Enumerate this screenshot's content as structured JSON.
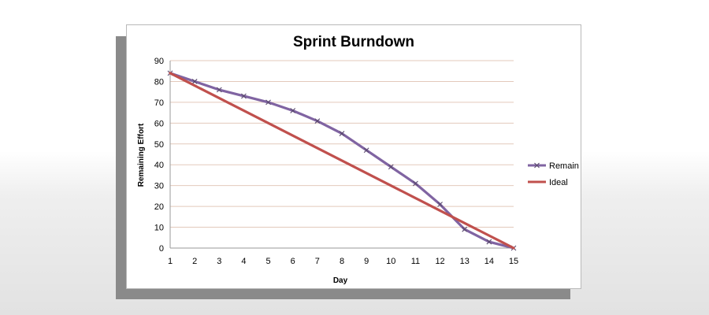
{
  "chart_data": {
    "type": "line",
    "title": "Sprint Burndown",
    "xlabel": "Day",
    "ylabel": "Remaining Effort",
    "x": [
      1,
      2,
      3,
      4,
      5,
      6,
      7,
      8,
      9,
      10,
      11,
      12,
      13,
      14,
      15
    ],
    "ylim": [
      0,
      90
    ],
    "yticks": [
      0,
      10,
      20,
      30,
      40,
      50,
      60,
      70,
      80,
      90
    ],
    "grid": true,
    "legend_position": "right",
    "series": [
      {
        "name": "Remain",
        "color": "#8064a2",
        "marker": "x",
        "values": [
          84,
          80,
          76,
          73,
          70,
          66,
          61,
          55,
          47,
          39,
          31,
          21,
          9,
          3,
          0
        ]
      },
      {
        "name": "Ideal",
        "color": "#c0504d",
        "marker": "none",
        "values": [
          84,
          78,
          72,
          66,
          60,
          54,
          48,
          42,
          36,
          30,
          24,
          18,
          12,
          6,
          0
        ]
      }
    ]
  }
}
